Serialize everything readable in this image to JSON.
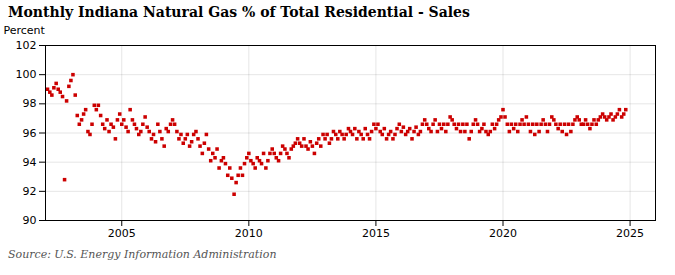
{
  "chart_data": {
    "type": "scatter",
    "title": "Monthly Indiana Natural Gas % of Total Residential - Sales",
    "ylabel": "Percent",
    "annotations": [
      "Source: U.S. Energy Information Administration"
    ],
    "color": "#cc0000",
    "marker": "square",
    "xlim": [
      2002.0,
      2026.0
    ],
    "xticks": [
      2005,
      2010,
      2015,
      2020,
      2025
    ],
    "ylim": [
      90,
      102
    ],
    "yticks": [
      90,
      92,
      94,
      96,
      98,
      100,
      102
    ],
    "grid": true,
    "x": [
      2002.08,
      2002.17,
      2002.25,
      2002.33,
      2002.42,
      2002.5,
      2002.58,
      2002.67,
      2002.75,
      2002.83,
      2002.92,
      2003.0,
      2003.08,
      2003.17,
      2003.25,
      2003.33,
      2003.42,
      2003.5,
      2003.58,
      2003.67,
      2003.75,
      2003.83,
      2003.92,
      2004.0,
      2004.08,
      2004.17,
      2004.25,
      2004.33,
      2004.42,
      2004.5,
      2004.58,
      2004.67,
      2004.75,
      2004.83,
      2004.92,
      2005.0,
      2005.08,
      2005.17,
      2005.25,
      2005.33,
      2005.42,
      2005.5,
      2005.58,
      2005.67,
      2005.75,
      2005.83,
      2005.92,
      2006.0,
      2006.08,
      2006.17,
      2006.25,
      2006.33,
      2006.42,
      2006.5,
      2006.58,
      2006.67,
      2006.75,
      2006.83,
      2006.92,
      2007.0,
      2007.08,
      2007.17,
      2007.25,
      2007.33,
      2007.42,
      2007.5,
      2007.58,
      2007.67,
      2007.75,
      2007.83,
      2007.92,
      2008.0,
      2008.08,
      2008.17,
      2008.25,
      2008.33,
      2008.42,
      2008.5,
      2008.58,
      2008.67,
      2008.75,
      2008.83,
      2008.92,
      2009.0,
      2009.08,
      2009.17,
      2009.25,
      2009.33,
      2009.42,
      2009.5,
      2009.58,
      2009.67,
      2009.75,
      2009.83,
      2009.92,
      2010.0,
      2010.08,
      2010.17,
      2010.25,
      2010.33,
      2010.42,
      2010.5,
      2010.58,
      2010.67,
      2010.75,
      2010.83,
      2010.92,
      2011.0,
      2011.08,
      2011.17,
      2011.25,
      2011.33,
      2011.42,
      2011.5,
      2011.58,
      2011.67,
      2011.75,
      2011.83,
      2011.92,
      2012.0,
      2012.08,
      2012.17,
      2012.25,
      2012.33,
      2012.42,
      2012.5,
      2012.58,
      2012.67,
      2012.75,
      2012.83,
      2012.92,
      2013.0,
      2013.08,
      2013.17,
      2013.25,
      2013.33,
      2013.42,
      2013.5,
      2013.58,
      2013.67,
      2013.75,
      2013.83,
      2013.92,
      2014.0,
      2014.08,
      2014.17,
      2014.25,
      2014.33,
      2014.42,
      2014.5,
      2014.58,
      2014.67,
      2014.75,
      2014.83,
      2014.92,
      2015.0,
      2015.08,
      2015.17,
      2015.25,
      2015.33,
      2015.42,
      2015.5,
      2015.58,
      2015.67,
      2015.75,
      2015.83,
      2015.92,
      2016.0,
      2016.08,
      2016.17,
      2016.25,
      2016.33,
      2016.42,
      2016.5,
      2016.58,
      2016.67,
      2016.75,
      2016.83,
      2016.92,
      2017.0,
      2017.08,
      2017.17,
      2017.25,
      2017.33,
      2017.42,
      2017.5,
      2017.58,
      2017.67,
      2017.75,
      2017.83,
      2017.92,
      2018.0,
      2018.08,
      2018.17,
      2018.25,
      2018.33,
      2018.42,
      2018.5,
      2018.58,
      2018.67,
      2018.75,
      2018.83,
      2018.92,
      2019.0,
      2019.08,
      2019.17,
      2019.25,
      2019.33,
      2019.42,
      2019.5,
      2019.58,
      2019.67,
      2019.75,
      2019.83,
      2019.92,
      2020.0,
      2020.08,
      2020.17,
      2020.25,
      2020.33,
      2020.42,
      2020.5,
      2020.58,
      2020.67,
      2020.75,
      2020.83,
      2020.92,
      2021.0,
      2021.08,
      2021.17,
      2021.25,
      2021.33,
      2021.42,
      2021.5,
      2021.58,
      2021.67,
      2021.75,
      2021.83,
      2021.92,
      2022.0,
      2022.08,
      2022.17,
      2022.25,
      2022.33,
      2022.42,
      2022.5,
      2022.58,
      2022.67,
      2022.75,
      2022.83,
      2022.92,
      2023.0,
      2023.08,
      2023.17,
      2023.25,
      2023.33,
      2023.42,
      2023.5,
      2023.58,
      2023.67,
      2023.75,
      2023.83,
      2023.92,
      2024.0,
      2024.08,
      2024.17,
      2024.25,
      2024.33,
      2024.42,
      2024.5,
      2024.58,
      2024.67,
      2024.75,
      2024.83
    ],
    "values": [
      99.0,
      98.8,
      98.6,
      99.1,
      99.4,
      99.0,
      98.8,
      98.5,
      92.8,
      98.2,
      99.2,
      99.6,
      100.0,
      98.6,
      97.2,
      96.6,
      96.9,
      97.3,
      97.6,
      96.1,
      95.9,
      96.6,
      97.9,
      97.6,
      97.9,
      97.2,
      96.6,
      96.3,
      96.9,
      96.1,
      96.6,
      96.4,
      95.6,
      96.9,
      97.3,
      96.6,
      96.9,
      96.4,
      96.1,
      97.6,
      96.9,
      96.6,
      96.3,
      95.9,
      96.1,
      96.6,
      97.1,
      96.4,
      96.1,
      95.6,
      95.9,
      95.4,
      96.6,
      96.1,
      95.6,
      95.1,
      96.3,
      96.1,
      96.6,
      96.9,
      96.6,
      96.1,
      95.6,
      95.9,
      95.3,
      95.6,
      95.9,
      95.1,
      95.4,
      95.9,
      96.1,
      95.6,
      95.1,
      94.6,
      95.3,
      95.9,
      94.9,
      94.1,
      94.6,
      94.3,
      94.9,
      93.6,
      94.1,
      94.3,
      93.9,
      93.1,
      93.6,
      92.9,
      91.8,
      92.6,
      93.1,
      93.6,
      93.1,
      93.9,
      94.3,
      94.6,
      94.1,
      93.9,
      93.6,
      94.3,
      94.1,
      93.9,
      94.6,
      93.6,
      94.1,
      94.6,
      94.9,
      94.6,
      94.3,
      94.1,
      94.6,
      95.1,
      94.9,
      94.6,
      94.3,
      94.9,
      95.1,
      95.3,
      95.6,
      95.3,
      95.1,
      95.6,
      95.1,
      94.9,
      95.4,
      95.1,
      94.6,
      95.3,
      95.6,
      95.1,
      95.9,
      95.6,
      95.9,
      95.3,
      95.6,
      96.1,
      95.9,
      95.6,
      96.1,
      95.9,
      95.6,
      95.9,
      96.3,
      96.1,
      95.9,
      96.3,
      95.6,
      96.1,
      95.9,
      95.6,
      96.3,
      95.9,
      95.6,
      96.1,
      96.6,
      96.3,
      96.6,
      96.1,
      95.9,
      96.3,
      95.6,
      95.9,
      96.1,
      95.6,
      95.9,
      96.3,
      96.6,
      96.1,
      96.4,
      95.9,
      96.1,
      96.3,
      95.6,
      96.1,
      96.4,
      95.9,
      96.1,
      96.6,
      96.9,
      96.6,
      96.3,
      96.1,
      96.6,
      96.9,
      96.1,
      96.6,
      96.3,
      96.6,
      96.1,
      96.6,
      97.1,
      96.9,
      96.6,
      96.3,
      96.6,
      96.1,
      96.6,
      96.1,
      96.6,
      95.6,
      96.1,
      96.6,
      96.9,
      96.6,
      96.1,
      96.3,
      96.6,
      96.1,
      95.9,
      96.1,
      96.6,
      96.3,
      96.6,
      96.9,
      97.1,
      97.6,
      97.1,
      96.6,
      96.1,
      96.6,
      96.3,
      96.6,
      96.1,
      96.6,
      96.9,
      96.6,
      97.1,
      96.6,
      96.1,
      96.6,
      95.9,
      96.6,
      96.1,
      96.6,
      96.9,
      96.6,
      96.1,
      96.6,
      97.1,
      96.9,
      96.6,
      96.3,
      96.6,
      96.1,
      96.6,
      95.9,
      96.6,
      96.1,
      96.6,
      96.9,
      97.1,
      96.9,
      96.6,
      96.6,
      96.9,
      96.6,
      96.3,
      96.6,
      96.9,
      96.6,
      96.9,
      97.1,
      97.3,
      97.1,
      96.9,
      97.1,
      97.3,
      96.9,
      97.1,
      97.3,
      97.6,
      97.1,
      97.3,
      97.6
    ]
  }
}
